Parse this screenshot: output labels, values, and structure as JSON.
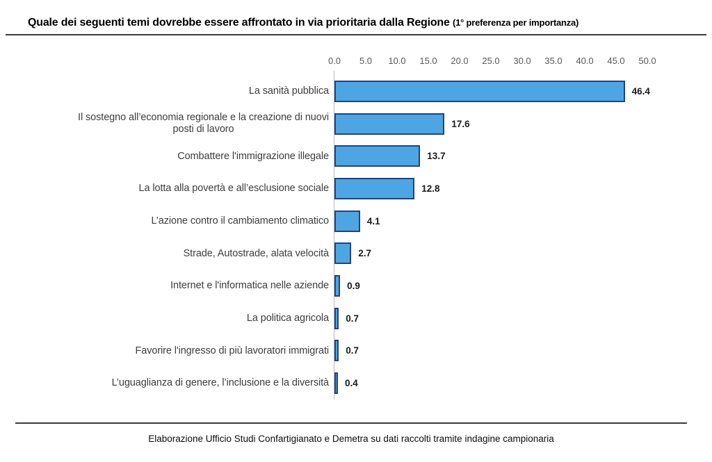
{
  "chart_data": {
    "type": "bar",
    "orientation": "horizontal",
    "title": "Quale dei seguenti temi dovrebbe essere affrontato in via prioritaria dalla Regione ",
    "title_suffix": "(1° preferenza per importanza)",
    "categories": [
      "La sanità pubblica",
      "Il sostegno all’economia regionale e la creazione di nuovi\nposti di lavoro",
      "Combattere l'immigrazione illegale",
      "La lotta alla povertà e all’esclusione sociale",
      "L’azione contro il cambiamento climatico",
      "Strade, Autostrade, alata velocità",
      "Internet e l'informatica nelle aziende",
      "La politica agricola",
      "Favorire l'ingresso di più lavoratori  immigrati",
      "L’uguaglianza di genere, l’inclusione e la diversità"
    ],
    "values": [
      46.4,
      17.6,
      13.7,
      12.8,
      4.1,
      2.7,
      0.9,
      0.7,
      0.7,
      0.4
    ],
    "value_labels": [
      "46.4",
      "17.6",
      "13.7",
      "12.8",
      "4.1",
      "2.7",
      "0.9",
      "0.7",
      "0.7",
      "0.4"
    ],
    "x_ticks": [
      "0.0",
      "5.0",
      "10.0",
      "15.0",
      "20.0",
      "25.0",
      "30.0",
      "35.0",
      "40.0",
      "45.0",
      "50.0"
    ],
    "xlim": [
      0,
      50
    ],
    "legend": "none",
    "grid": "off",
    "bar_color": "#4da6e3",
    "bar_border_color": "#24427c",
    "footer": "Elaborazione Ufficio Studi Confartigianato e Demetra su dati raccolti tramite indagine campionaria"
  }
}
